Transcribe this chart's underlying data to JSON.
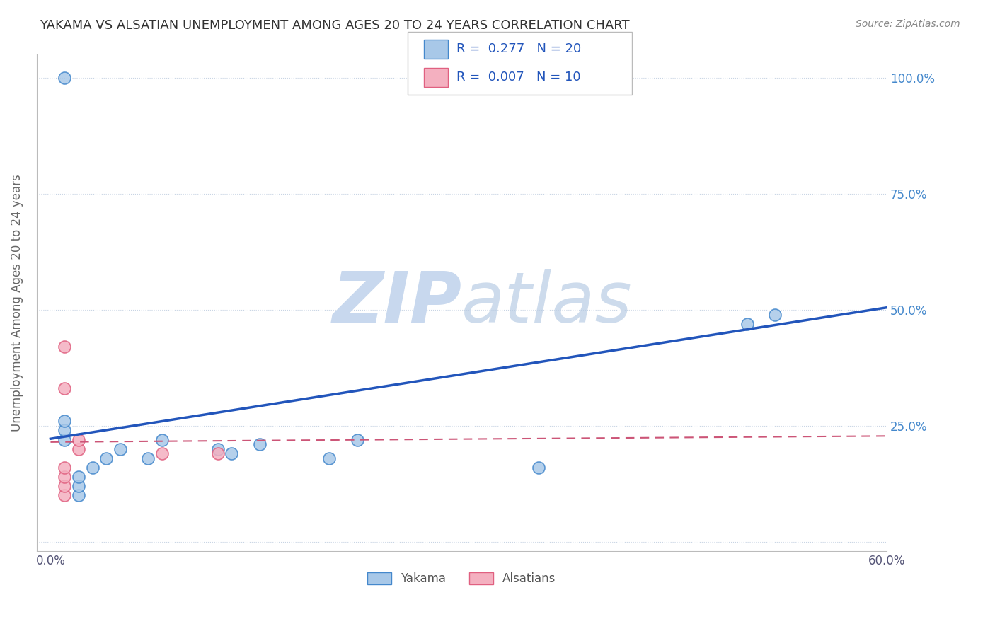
{
  "title": "YAKAMA VS ALSATIAN UNEMPLOYMENT AMONG AGES 20 TO 24 YEARS CORRELATION CHART",
  "source_text": "Source: ZipAtlas.com",
  "ylabel": "Unemployment Among Ages 20 to 24 years",
  "xlim": [
    0.0,
    0.6
  ],
  "ylim": [
    0.0,
    1.05
  ],
  "ytick_positions": [
    0.0,
    0.25,
    0.5,
    0.75,
    1.0
  ],
  "ytick_labels_right": [
    "",
    "25.0%",
    "50.0%",
    "75.0%",
    "100.0%"
  ],
  "R_yakama": 0.277,
  "N_yakama": 20,
  "R_alsatian": 0.007,
  "N_alsatian": 10,
  "yakama_x": [
    0.01,
    0.01,
    0.01,
    0.02,
    0.02,
    0.02,
    0.03,
    0.04,
    0.05,
    0.07,
    0.08,
    0.13,
    0.15,
    0.2,
    0.22,
    0.35,
    0.5,
    0.52,
    0.01,
    0.12
  ],
  "yakama_y": [
    0.22,
    0.24,
    0.26,
    0.1,
    0.12,
    0.14,
    0.16,
    0.18,
    0.2,
    0.18,
    0.22,
    0.19,
    0.21,
    0.18,
    0.22,
    0.16,
    0.47,
    0.49,
    1.0,
    0.2
  ],
  "alsatian_x": [
    0.01,
    0.01,
    0.01,
    0.01,
    0.02,
    0.02,
    0.08,
    0.12,
    0.01,
    0.01
  ],
  "alsatian_y": [
    0.1,
    0.12,
    0.14,
    0.16,
    0.2,
    0.22,
    0.19,
    0.19,
    0.33,
    0.42
  ],
  "blue_line_x0": 0.0,
  "blue_line_y0": 0.222,
  "blue_line_x1": 0.6,
  "blue_line_y1": 0.505,
  "pink_line_x0": 0.0,
  "pink_line_y0": 0.215,
  "pink_line_x1": 0.6,
  "pink_line_y1": 0.228,
  "yakama_color": "#a8c8e8",
  "alsatian_color": "#f4b0c0",
  "yakama_edge_color": "#4488cc",
  "alsatian_edge_color": "#e06080",
  "regression_blue_color": "#2255bb",
  "regression_pink_color": "#cc5577",
  "watermark_color": "#ccddf0",
  "grid_color": "#c8d4e4",
  "title_color": "#333333",
  "legend_N_color": "#2255bb",
  "axis_label_color": "#666666",
  "right_tick_color": "#4488cc"
}
